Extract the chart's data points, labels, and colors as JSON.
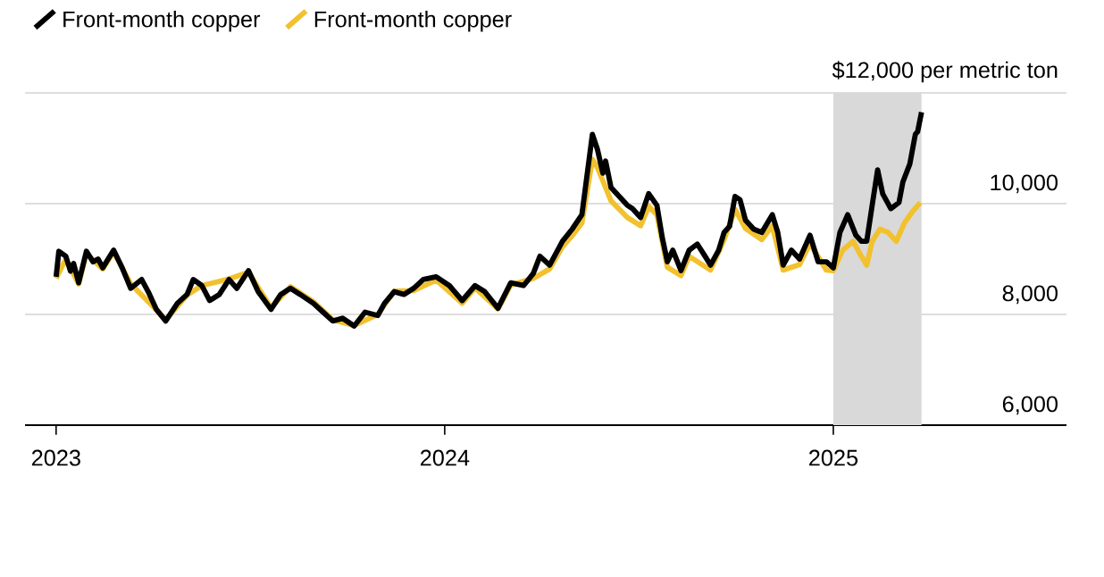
{
  "chart_data": {
    "type": "line",
    "series": [
      {
        "name": "Front-month copper",
        "color": "#000000",
        "x": [
          2023.0,
          2023.007,
          2023.025,
          2023.037,
          2023.045,
          2023.058,
          2023.078,
          2023.095,
          2023.108,
          2023.12,
          2023.148,
          2023.17,
          2023.192,
          2023.22,
          2023.237,
          2023.258,
          2023.282,
          2023.312,
          2023.337,
          2023.353,
          2023.375,
          2023.395,
          2023.42,
          2023.445,
          2023.465,
          2023.495,
          2023.52,
          2023.553,
          2023.578,
          2023.603,
          2023.628,
          2023.662,
          2023.687,
          2023.712,
          2023.737,
          2023.767,
          2023.795,
          2023.828,
          2023.845,
          2023.87,
          2023.895,
          2023.92,
          2023.945,
          2023.978,
          2024.012,
          2024.045,
          2024.078,
          2024.103,
          2024.137,
          2024.17,
          2024.203,
          2024.228,
          2024.245,
          2024.27,
          2024.303,
          2024.328,
          2024.353,
          2024.38,
          2024.393,
          2024.407,
          2024.414,
          2024.428,
          2024.449,
          2024.47,
          2024.483,
          2024.504,
          2024.525,
          2024.546,
          2024.56,
          2024.573,
          2024.587,
          2024.608,
          2024.629,
          2024.65,
          2024.67,
          2024.684,
          2024.705,
          2024.719,
          2024.733,
          2024.747,
          2024.76,
          2024.774,
          2024.795,
          2024.816,
          2024.843,
          2024.857,
          2024.871,
          2024.892,
          2024.913,
          2024.94,
          2024.961,
          2024.982,
          2025.0,
          2025.017,
          2025.037,
          2025.058,
          2025.072,
          2025.086,
          2025.1,
          2025.114,
          2025.127,
          2025.148,
          2025.169,
          2025.179,
          2025.197,
          2025.211,
          2025.217,
          2025.227
        ],
        "values": [
          8680,
          9140,
          9050,
          8780,
          8920,
          8570,
          9140,
          8950,
          9000,
          8840,
          9160,
          8840,
          8470,
          8630,
          8410,
          8090,
          7880,
          8200,
          8360,
          8630,
          8520,
          8250,
          8360,
          8630,
          8470,
          8790,
          8410,
          8090,
          8360,
          8470,
          8360,
          8200,
          8040,
          7880,
          7930,
          7790,
          8040,
          7980,
          8200,
          8410,
          8360,
          8470,
          8630,
          8680,
          8520,
          8250,
          8520,
          8410,
          8110,
          8570,
          8520,
          8740,
          9050,
          8890,
          9320,
          9540,
          9800,
          11250,
          10980,
          10550,
          10770,
          10290,
          10130,
          9970,
          9910,
          9750,
          10180,
          9970,
          9380,
          8950,
          9160,
          8790,
          9160,
          9270,
          9050,
          8890,
          9160,
          9480,
          9590,
          10130,
          10070,
          9700,
          9540,
          9480,
          9800,
          9480,
          8890,
          9160,
          9000,
          9430,
          8950,
          8950,
          8840,
          9480,
          9800,
          9430,
          9320,
          9320,
          9970,
          10610,
          10180,
          9910,
          10020,
          10390,
          10720,
          11250,
          11300,
          11650
        ]
      },
      {
        "name": "Front-month copper",
        "color": "#f2c12e",
        "x": [
          2023.0,
          2023.025,
          2023.058,
          2023.078,
          2023.12,
          2023.148,
          2023.192,
          2023.258,
          2023.282,
          2023.337,
          2023.375,
          2023.445,
          2023.495,
          2023.553,
          2023.603,
          2023.662,
          2023.712,
          2023.767,
          2023.828,
          2023.87,
          2023.92,
          2023.978,
          2024.045,
          2024.078,
          2024.137,
          2024.17,
          2024.228,
          2024.27,
          2024.303,
          2024.328,
          2024.353,
          2024.38,
          2024.393,
          2024.428,
          2024.47,
          2024.504,
          2024.525,
          2024.546,
          2024.573,
          2024.608,
          2024.629,
          2024.684,
          2024.719,
          2024.747,
          2024.774,
          2024.816,
          2024.843,
          2024.871,
          2024.913,
          2024.94,
          2024.982,
          2025.0,
          2025.024,
          2025.051,
          2025.072,
          2025.086,
          2025.1,
          2025.12,
          2025.141,
          2025.162,
          2025.183,
          2025.204,
          2025.224
        ],
        "values": [
          8650,
          9000,
          8550,
          9100,
          8820,
          9130,
          8550,
          8080,
          7900,
          8350,
          8520,
          8640,
          8760,
          8120,
          8500,
          8230,
          7900,
          7800,
          8000,
          8420,
          8430,
          8620,
          8200,
          8480,
          8100,
          8530,
          8650,
          8820,
          9220,
          9420,
          9650,
          10800,
          10650,
          10050,
          9750,
          9600,
          9950,
          9800,
          8850,
          8700,
          9050,
          8800,
          9350,
          9900,
          9550,
          9350,
          9600,
          8800,
          8900,
          9280,
          8800,
          8790,
          9160,
          9320,
          9050,
          8890,
          9320,
          9540,
          9480,
          9320,
          9650,
          9860,
          10020
        ]
      }
    ],
    "xlim": [
      2022.92,
      2025.6
    ],
    "xticks": [
      2023,
      2024,
      2025
    ],
    "ylim": [
      6000,
      12000
    ],
    "yticks": [
      {
        "value": 6000,
        "label": "6,000"
      },
      {
        "value": 8000,
        "label": "8,000"
      },
      {
        "value": 10000,
        "label": "10,000"
      },
      {
        "value": 12000,
        "label": "$12,000 per metric ton"
      }
    ],
    "bands": [
      {
        "axis": "x",
        "from": 2025,
        "to": 2025.227,
        "color": "#d9d9d9"
      }
    ],
    "grid": "y",
    "legend": "top left",
    "marker": "none",
    "line_style": "solid"
  }
}
